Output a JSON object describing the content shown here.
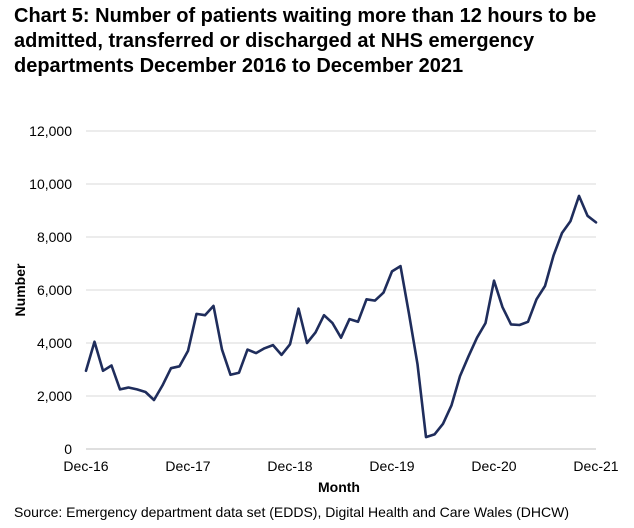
{
  "chart_data": {
    "type": "line",
    "title": "Chart 5: Number of patients waiting more than 12 hours to be admitted, transferred or discharged at NHS emergency departments December 2016 to December 2021",
    "xlabel": "Month",
    "ylabel": "Number",
    "ylim": [
      0,
      12000
    ],
    "yticks": [
      "0",
      "2,000",
      "4,000",
      "6,000",
      "8,000",
      "10,000",
      "12,000"
    ],
    "ytick_values": [
      0,
      2000,
      4000,
      6000,
      8000,
      10000,
      12000
    ],
    "xtick_labels": [
      "Dec-16",
      "Dec-17",
      "Dec-18",
      "Dec-19",
      "Dec-20",
      "Dec-21"
    ],
    "xtick_indices": [
      0,
      12,
      24,
      36,
      48,
      60
    ],
    "grid": true,
    "color": "#1f2d5c",
    "series": [
      {
        "values": [
          2950,
          4050,
          2950,
          3150,
          2250,
          2320,
          2250,
          2150,
          1850,
          2400,
          3050,
          3120,
          3700,
          5100,
          5050,
          5400,
          3750,
          2800,
          2880,
          3750,
          3620,
          3800,
          3920,
          3550,
          3950,
          5300,
          4000,
          4400,
          5050,
          4750,
          4200,
          4900,
          4800,
          5650,
          5600,
          5900,
          6700,
          6900,
          5100,
          3200,
          450,
          550,
          950,
          1650,
          2750,
          3500,
          4200,
          4750,
          6350,
          5350,
          4700,
          4680,
          4800,
          5650,
          6150,
          7300,
          8150,
          8600,
          9550,
          8800,
          8550
        ]
      }
    ]
  },
  "source": "Source: Emergency department data set (EDDS), Digital Health and Care Wales (DHCW)"
}
